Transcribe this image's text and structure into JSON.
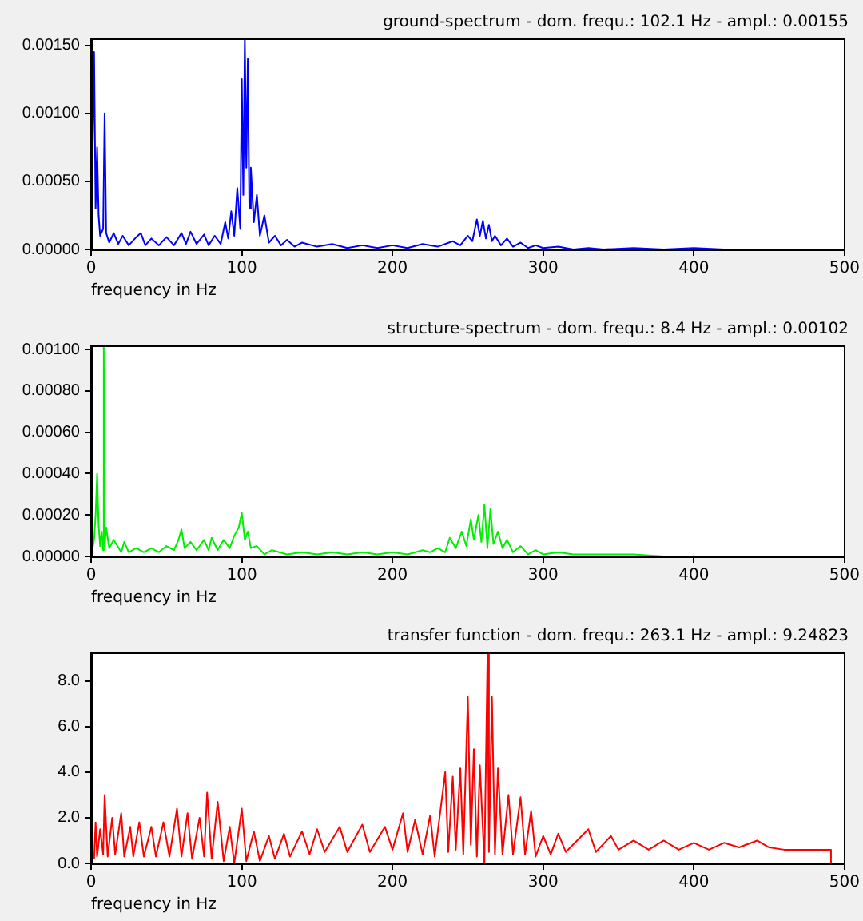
{
  "chart_data": [
    {
      "type": "line",
      "title": "ground-spectrum - dom. frequ.: 102.1 Hz - ampl.: 0.00155",
      "xlabel": "frequency in Hz",
      "marker": "none",
      "x": [
        0,
        2,
        3,
        4,
        5,
        6,
        8,
        9,
        10,
        12,
        15,
        18,
        21,
        25,
        30,
        33,
        36,
        40,
        45,
        50,
        55,
        60,
        63,
        66,
        70,
        75,
        78,
        82,
        86,
        89,
        91,
        93,
        95,
        97,
        99,
        100,
        101,
        102,
        103,
        104,
        105,
        106,
        108,
        110,
        112,
        115,
        118,
        122,
        126,
        130,
        135,
        140,
        150,
        160,
        170,
        180,
        190,
        200,
        210,
        220,
        230,
        240,
        245,
        250,
        253,
        256,
        258,
        260,
        262,
        264,
        266,
        268,
        272,
        276,
        280,
        285,
        290,
        295,
        300,
        310,
        320,
        330,
        340,
        360,
        380,
        400,
        420,
        440,
        445,
        460,
        470,
        500
      ],
      "series": [
        {
          "color": "#0000ff",
          "values": [
            0,
            0.00145,
            0.0003,
            0.00075,
            0.00025,
            0.0001,
            0.00015,
            0.001,
            0.00012,
            5e-05,
            0.00012,
            4e-05,
            0.0001,
            3e-05,
            9e-05,
            0.00012,
            3e-05,
            8e-05,
            3e-05,
            9e-05,
            3e-05,
            0.00012,
            4e-05,
            0.00013,
            4e-05,
            0.00011,
            3e-05,
            0.0001,
            4e-05,
            0.0002,
            8e-05,
            0.00028,
            0.0001,
            0.00045,
            0.00015,
            0.00125,
            0.0004,
            0.00155,
            0.0006,
            0.0014,
            0.0003,
            0.0006,
            0.0002,
            0.0004,
            0.0001,
            0.00025,
            5e-05,
            0.0001,
            3e-05,
            7e-05,
            2e-05,
            5e-05,
            2e-05,
            4e-05,
            1e-05,
            3e-05,
            1e-05,
            3e-05,
            1e-05,
            4e-05,
            2e-05,
            6e-05,
            3e-05,
            0.0001,
            6e-05,
            0.00022,
            0.0001,
            0.00021,
            8e-05,
            0.00018,
            6e-05,
            0.0001,
            3e-05,
            8e-05,
            2e-05,
            5e-05,
            1e-05,
            3e-05,
            1e-05,
            2e-05,
            0,
            1e-05,
            0,
            1e-05,
            0,
            1e-05,
            0,
            0,
            0,
            0,
            0,
            0
          ]
        }
      ],
      "xlim": [
        0,
        500
      ],
      "xticks": [
        0,
        100,
        200,
        300,
        400,
        500
      ],
      "ylim": [
        0,
        0.00155
      ],
      "yticks": [
        {
          "value": 0,
          "label": "0.00000"
        },
        {
          "value": 0.0005,
          "label": "0.00050"
        },
        {
          "value": 0.001,
          "label": "0.00100"
        },
        {
          "value": 0.0015,
          "label": "0.00150"
        }
      ]
    },
    {
      "type": "line",
      "title": "structure-spectrum - dom. frequ.: 8.4 Hz - ampl.: 0.00102",
      "xlabel": "frequency in Hz",
      "marker": "none",
      "x": [
        0,
        2,
        3,
        4,
        5,
        6,
        7,
        8,
        8.4,
        9,
        10,
        12,
        15,
        20,
        22,
        25,
        30,
        35,
        40,
        45,
        50,
        55,
        58,
        60,
        62,
        66,
        70,
        75,
        78,
        80,
        84,
        88,
        92,
        95,
        98,
        100,
        102,
        104,
        106,
        110,
        115,
        120,
        130,
        140,
        150,
        160,
        170,
        180,
        190,
        200,
        210,
        220,
        225,
        230,
        235,
        238,
        242,
        246,
        249,
        252,
        254,
        257,
        259,
        261,
        263,
        265,
        267,
        270,
        273,
        276,
        280,
        285,
        290,
        295,
        300,
        310,
        320,
        330,
        340,
        360,
        380,
        400,
        420,
        445,
        460,
        500
      ],
      "series": [
        {
          "color": "#00ee00",
          "values": [
            0,
            8e-05,
            0.0002,
            0.0004,
            0.00015,
            5e-05,
            0.00012,
            3e-05,
            0.00102,
            5e-05,
            0.00014,
            4e-05,
            8e-05,
            2e-05,
            7e-05,
            2e-05,
            4e-05,
            2e-05,
            4e-05,
            2e-05,
            5e-05,
            3e-05,
            8e-05,
            0.00013,
            4e-05,
            7e-05,
            3e-05,
            8e-05,
            3e-05,
            9e-05,
            3e-05,
            8e-05,
            4e-05,
            0.0001,
            0.00014,
            0.00021,
            8e-05,
            0.00012,
            4e-05,
            5e-05,
            1e-05,
            3e-05,
            1e-05,
            2e-05,
            1e-05,
            2e-05,
            1e-05,
            2e-05,
            1e-05,
            2e-05,
            1e-05,
            3e-05,
            2e-05,
            4e-05,
            2e-05,
            9e-05,
            4e-05,
            0.00012,
            5e-05,
            0.00018,
            8e-05,
            0.0002,
            7e-05,
            0.00025,
            4e-05,
            0.00023,
            6e-05,
            0.00012,
            4e-05,
            8e-05,
            2e-05,
            5e-05,
            1e-05,
            3e-05,
            1e-05,
            2e-05,
            1e-05,
            1e-05,
            1e-05,
            1e-05,
            0,
            0,
            0,
            0,
            0,
            0
          ]
        }
      ],
      "xlim": [
        0,
        500
      ],
      "xticks": [
        0,
        100,
        200,
        300,
        400,
        500
      ],
      "ylim": [
        0,
        0.00102
      ],
      "yticks": [
        {
          "value": 0,
          "label": "0.00000"
        },
        {
          "value": 0.0002,
          "label": "0.00020"
        },
        {
          "value": 0.0004,
          "label": "0.00040"
        },
        {
          "value": 0.0006,
          "label": "0.00060"
        },
        {
          "value": 0.0008,
          "label": "0.00080"
        },
        {
          "value": 0.001,
          "label": "0.00100"
        }
      ]
    },
    {
      "type": "line",
      "title": "transfer function - dom. frequ.: 263.1 Hz - ampl.: 9.24823",
      "xlabel": "frequency in Hz",
      "marker": "none",
      "x": [
        2,
        3,
        4,
        6,
        8,
        9,
        11,
        14,
        16,
        20,
        22,
        26,
        28,
        32,
        35,
        40,
        43,
        48,
        52,
        57,
        60,
        64,
        67,
        72,
        75,
        77,
        80,
        84,
        88,
        92,
        95,
        100,
        103,
        108,
        112,
        118,
        122,
        128,
        132,
        140,
        145,
        150,
        155,
        165,
        170,
        180,
        185,
        195,
        200,
        207,
        210,
        215,
        220,
        225,
        228,
        235,
        237,
        240,
        242,
        245,
        247,
        250,
        252,
        254,
        256,
        258,
        261,
        263.1,
        264,
        266,
        268,
        270,
        273,
        277,
        280,
        285,
        288,
        292,
        295,
        300,
        305,
        310,
        315,
        330,
        335,
        345,
        350,
        360,
        370,
        380,
        390,
        400,
        410,
        420,
        430,
        442,
        450,
        460,
        491,
        491
      ],
      "series": [
        {
          "color": "#ff0000",
          "values": [
            0.2,
            1.8,
            0.3,
            1.5,
            0.4,
            3.0,
            0.3,
            2.0,
            0.4,
            2.2,
            0.3,
            1.6,
            0.3,
            1.8,
            0.3,
            1.6,
            0.3,
            1.8,
            0.3,
            2.4,
            0.3,
            2.2,
            0.2,
            2.0,
            0.3,
            3.1,
            0.2,
            2.7,
            0.1,
            1.6,
            0.0,
            2.4,
            0.1,
            1.4,
            0.1,
            1.2,
            0.2,
            1.3,
            0.3,
            1.4,
            0.4,
            1.5,
            0.5,
            1.6,
            0.5,
            1.7,
            0.5,
            1.6,
            0.6,
            2.2,
            0.5,
            1.9,
            0.4,
            2.1,
            0.3,
            4.0,
            0.5,
            3.8,
            0.6,
            4.2,
            0.4,
            7.3,
            0.8,
            5.0,
            0.3,
            4.3,
            0.0,
            9.25,
            0.5,
            7.3,
            0.4,
            4.2,
            0.4,
            3.0,
            0.4,
            2.9,
            0.4,
            2.3,
            0.3,
            1.2,
            0.4,
            1.3,
            0.5,
            1.5,
            0.5,
            1.2,
            0.6,
            1.0,
            0.6,
            1.0,
            0.6,
            0.9,
            0.6,
            0.9,
            0.7,
            1.0,
            0.7,
            0.6,
            0.6,
            0
          ]
        }
      ],
      "xlim": [
        0,
        500
      ],
      "xticks": [
        0,
        100,
        200,
        300,
        400,
        500
      ],
      "ylim": [
        0,
        9.25
      ],
      "yticks": [
        {
          "value": 0,
          "label": "0.0"
        },
        {
          "value": 2,
          "label": "2.0"
        },
        {
          "value": 4,
          "label": "4.0"
        },
        {
          "value": 6,
          "label": "6.0"
        },
        {
          "value": 8,
          "label": "8.0"
        }
      ]
    }
  ]
}
